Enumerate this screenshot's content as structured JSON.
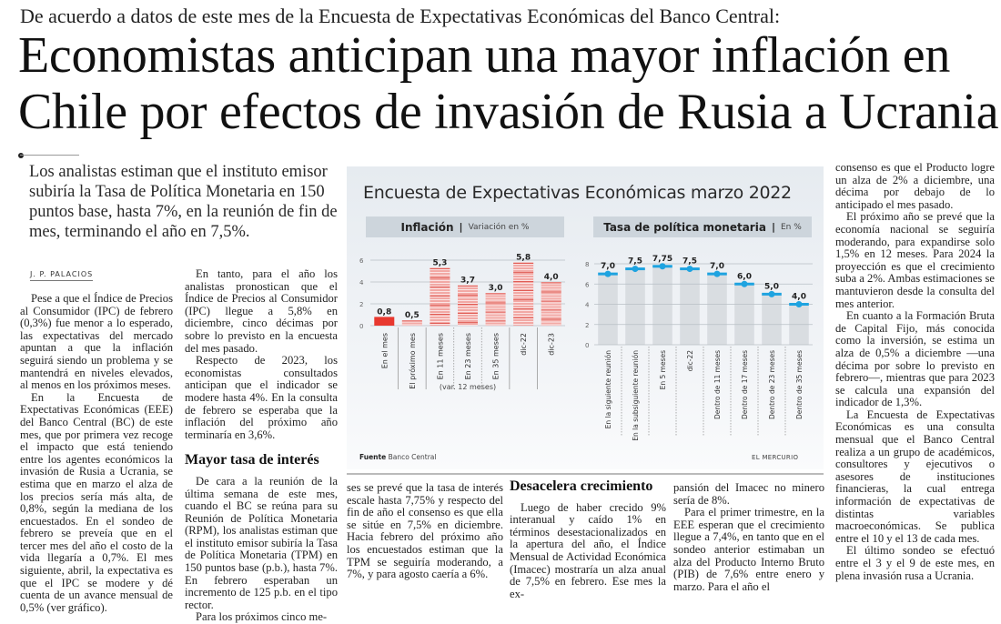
{
  "article": {
    "kicker": "De acuerdo a datos de este mes de la Encuesta de Expectativas Económicas del Banco Central:",
    "headline_line1": "Economistas anticipan una mayor inflación en",
    "headline_line2": "Chile por efectos de invasión de Rusia a Ucrania",
    "lead": "Los analistas estiman que el instituto emisor subiría la Tasa de Política Monetaria en 150 puntos base, hasta 7%, en la reunión de fin de mes, terminando el año en 7,5%.",
    "byline": "J. P. PALACIOS",
    "col1": [
      "Pese a que el Índice de Precios al Consumidor (IPC) de febrero (0,3%) fue menor a lo esperado, las expectativas del mercado apuntan a que la inflación seguirá siendo un problema y se mantendrá en niveles elevados, al menos en los próximos meses.",
      "En la Encuesta de Expectativas Económicas (EEE) del Banco Central (BC) de este mes, que por primera vez recoge el impacto que está teniendo entre los agentes económicos la invasión de Rusia a Ucrania, se estima que en marzo el alza de los precios sería más alta, de 0,8%, según la mediana de los encuestados. En el sondeo de febrero se preveía que en el tercer mes del año el costo de la vida llegaría a 0,7%. El mes siguiente, abril, la expectativa es que el IPC se modere y dé cuenta de un avance mensual de 0,5% (ver gráfico)."
    ],
    "col2": [
      "En tanto, para el año los analistas pronostican que el Índice de Precios al Consumidor (IPC) llegue a 5,8% en diciembre, cinco décimas por sobre lo previsto en la encuesta del mes pasado.",
      "Respecto de 2023, los economistas consultados anticipan que el indicador se modere hasta 4%. En la consulta de febrero se esperaba que la inflación del próximo año terminaría en 3,6%."
    ],
    "subhead1": "Mayor tasa de interés",
    "col2b": [
      "De cara a la reunión de la última semana de este mes, cuando el BC se reúna para su Reunión de Política Monetaria (RPM), los analistas estiman que el instituto emisor subiría la Tasa de Política Monetaria (TPM) en 150 puntos base (p.b.), hasta 7%. En febrero esperaban un incremento de 125 p.b. en el tipo rector.",
      "Para los próximos cinco me-"
    ],
    "col3": "ses se prevé que la tasa de interés escale hasta 7,75% y respecto del fin de año el consenso es que ella se sitúe en 7,5% en diciembre. Hacia febrero del próximo año los encuestados estiman que la TPM se seguiría moderando, a 7%, y para agosto caería a 6%.",
    "subhead2": "Desacelera crecimiento",
    "col4": "Luego de haber crecido 9% interanual y caído 1% en términos desestacionalizados en la apertura del año, el Índice Mensual de Actividad Económica (Imacec) mostraría un alza anual de 7,5% en febrero. Ese mes la ex-",
    "col5": [
      "pansión del Imacec no minero sería de 8%.",
      "Para el primer trimestre, en la EEE esperan que el crecimiento llegue a 7,4%, en tanto que en el sondeo anterior estimaban un alza del Producto Interno Bruto (PIB) de 7,6% entre enero y marzo. Para el año el"
    ],
    "col6": [
      "consenso es que el Producto logre un alza de 2% a diciembre, una décima por debajo de lo anticipado el mes pasado.",
      "El próximo año se prevé que la economía nacional se seguiría moderando, para expandirse solo 1,5% en 12 meses. Para 2024 la proyección es que el crecimiento suba a 2%. Ambas estimaciones se mantuvieron desde la consulta del mes anterior.",
      "En cuanto a la Formación Bruta de Capital Fijo, más conocida como la inversión, se estima un alza de 0,5% a diciembre —una décima por sobre lo previsto en febrero—, mientras que para 2023 se calcula una expansión del indicador de 1,3%.",
      "La Encuesta de Expectativas Económicas es una consulta mensual que el Banco Central realiza a un grupo de académicos, consultores y ejecutivos o asesores de instituciones financieras, la cual entrega información de expectativas de distintas variables macroeconómicas. Se publica entre el 10 y el 13 de cada mes.",
      "El último sondeo se efectuó entre el 3 y el 9 de este mes, en plena invasión rusa a Ucrania."
    ]
  },
  "graphic": {
    "title": "Encuesta de Expectativas Económicas marzo 2022",
    "source_label": "Fuente",
    "source": "Banco Central",
    "brand": "EL MERCURIO",
    "colors": {
      "bar_red": "#e8382f",
      "bar_stripe": "#f2a9a5",
      "bar_stripe_dark": "#d9433b",
      "tpm_blue": "#1ea3e0",
      "tpm_column": "#d9dde1"
    }
  },
  "chart_data": [
    {
      "type": "bar",
      "title": "Inflación",
      "subtitle": "Variación en %",
      "categories": [
        "En el mes",
        "El próximo mes",
        "En 11 meses",
        "En 23 meses",
        "En 35 meses",
        "dic-22",
        "dic-23"
      ],
      "values": [
        0.8,
        0.5,
        5.3,
        3.7,
        3.0,
        5.8,
        4.0
      ],
      "labels": [
        "0,8",
        "0,5",
        "5,3",
        "3,7",
        "3,0",
        "5,8",
        "4,0"
      ],
      "group_label": "(var. 12 meses)",
      "group_categories": [
        "En 11 meses",
        "En 23 meses",
        "En 35 meses"
      ],
      "ylim": [
        0,
        6
      ],
      "yticks": [
        0,
        2,
        4,
        6
      ],
      "grid": true,
      "notes": "First two bars are monthly variation (solid first bar); others 12-month variation (striped)."
    },
    {
      "type": "bar",
      "title": "Tasa de política monetaria",
      "subtitle": "En %",
      "categories": [
        "En la siguiente reunión",
        "En la subsiguiente reunión",
        "En 5 meses",
        "dic-22",
        "Dentro de 11 meses",
        "Dentro de 17 meses",
        "Dentro de 23 meses",
        "Dentro de 35 meses"
      ],
      "values": [
        7.0,
        7.5,
        7.75,
        7.5,
        7.0,
        6.0,
        5.0,
        4.0
      ],
      "labels": [
        "7,0",
        "7,5",
        "7,75",
        "7,5",
        "7,0",
        "6,0",
        "5,0",
        "4,0"
      ],
      "ylim": [
        0,
        8
      ],
      "yticks": [
        0,
        2,
        4,
        6,
        8
      ],
      "grid": true
    }
  ]
}
